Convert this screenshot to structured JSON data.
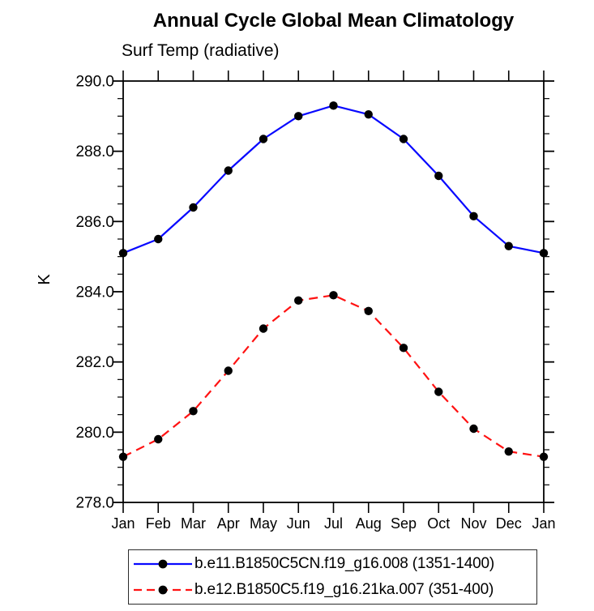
{
  "title": "Annual Cycle Global Mean Climatology",
  "subtitle": "Surf Temp (radiative)",
  "ylabel": "K",
  "colors": {
    "series1_blue": "#0808ff",
    "series2_red": "#ff1212",
    "marker_black": "#000000",
    "axis": "#000000",
    "legend_border": "#2b2b2b",
    "background": "#ffffff"
  },
  "legend": {
    "items": [
      {
        "label": "b.e11.B1850C5CN.f19_g16.008 (1351-1400)",
        "style": "solid",
        "color": "#0808ff",
        "marker": "#000000"
      },
      {
        "label": "b.e12.B1850C5.f19_g16.21ka.007 (351-400)",
        "style": "dashed",
        "color": "#ff1212",
        "marker": "#000000"
      }
    ]
  },
  "chart_data": {
    "type": "line",
    "title": "Annual Cycle Global Mean Climatology",
    "subtitle": "Surf Temp (radiative)",
    "xlabel": "",
    "ylabel": "K",
    "categories": [
      "Jan",
      "Feb",
      "Mar",
      "Apr",
      "May",
      "Jun",
      "Jul",
      "Aug",
      "Sep",
      "Oct",
      "Nov",
      "Dec",
      "Jan"
    ],
    "series": [
      {
        "name": "b.e11.B1850C5CN.f19_g16.008 (1351-1400)",
        "color": "#0808ff",
        "line_style": "solid",
        "marker": "filled-circle",
        "values": [
          285.1,
          285.5,
          286.4,
          287.45,
          288.35,
          289.0,
          289.3,
          289.05,
          288.35,
          287.3,
          286.15,
          285.3,
          285.1
        ]
      },
      {
        "name": "b.e12.B1850C5.f19_g16.21ka.007 (351-400)",
        "color": "#ff1212",
        "line_style": "dashed",
        "marker": "filled-circle",
        "values": [
          279.3,
          279.8,
          280.6,
          281.75,
          282.95,
          283.75,
          283.9,
          283.45,
          282.4,
          281.15,
          280.1,
          279.45,
          279.3
        ]
      }
    ],
    "ylim": [
      278.0,
      290.0
    ],
    "ytick_interval": 2.0,
    "yminor_interval": 0.5,
    "ytick_labels": [
      "278.0",
      "280.0",
      "282.0",
      "284.0",
      "286.0",
      "288.0",
      "290.0"
    ],
    "grid": false,
    "ticks": "outward-all-four-sides",
    "legend_position": "bottom-boxed"
  }
}
